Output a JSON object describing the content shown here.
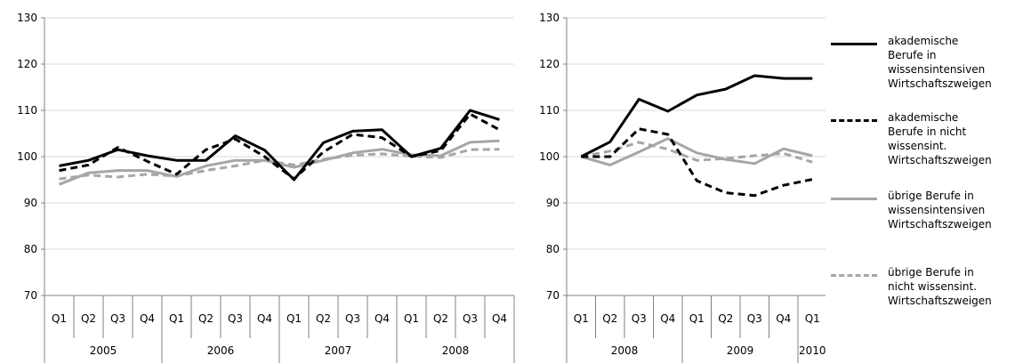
{
  "chart_data": [
    {
      "type": "line",
      "categories": [
        "Q1",
        "Q2",
        "Q3",
        "Q4",
        "Q1",
        "Q2",
        "Q3",
        "Q4",
        "Q1",
        "Q2",
        "Q3",
        "Q4",
        "Q1",
        "Q2",
        "Q3",
        "Q4"
      ],
      "groups": [
        {
          "label": "2005",
          "span": 4
        },
        {
          "label": "2006",
          "span": 4
        },
        {
          "label": "2007",
          "span": 4
        },
        {
          "label": "2008",
          "span": 4
        }
      ],
      "ylim": [
        70,
        130
      ],
      "yticks": [
        "70",
        "80",
        "90",
        "100",
        "110",
        "120",
        "130"
      ],
      "grid": true,
      "series": [
        {
          "name": "akademische Berufe in wissensintensiven Wirtschaftszweigen",
          "values": [
            98,
            99.2,
            101.5,
            100.2,
            99.2,
            99.2,
            104.5,
            101.4,
            95,
            103,
            105.5,
            105.8,
            100,
            101.8,
            110,
            108
          ]
        },
        {
          "name": "akademische Berufe in nicht wissensint. Wirtschaftszweigen",
          "values": [
            97,
            98.2,
            102,
            99,
            96.2,
            101.5,
            103.8,
            100,
            95.2,
            101,
            104.8,
            104.1,
            100,
            101.3,
            109.2,
            105.8
          ]
        },
        {
          "name": "übrige Berufe in wissensintensiven Wirtschaftszweigen",
          "values": [
            94,
            96.5,
            97,
            97,
            95.7,
            98,
            99.2,
            99.2,
            97.7,
            99.2,
            100.8,
            101.6,
            100.4,
            100.2,
            103.1,
            103.4
          ]
        },
        {
          "name": "übrige Berufe in nicht wissensint. Wirtschaftszweigen",
          "values": [
            95.2,
            96,
            95.6,
            96.2,
            95.8,
            97,
            98,
            99.2,
            98.2,
            99.4,
            100.3,
            100.6,
            100.1,
            99.8,
            101.5,
            101.6
          ]
        }
      ]
    },
    {
      "type": "line",
      "categories": [
        "Q1",
        "Q2",
        "Q3",
        "Q4",
        "Q1",
        "Q2",
        "Q3",
        "Q4",
        "Q1"
      ],
      "groups": [
        {
          "label": "2008",
          "span": 4
        },
        {
          "label": "2009",
          "span": 4
        },
        {
          "label": "2010",
          "span": 1
        }
      ],
      "ylim": [
        70,
        130
      ],
      "yticks": [
        "70",
        "80",
        "90",
        "100",
        "110",
        "120",
        "130"
      ],
      "grid": true,
      "series": [
        {
          "name": "akademische Berufe in wissensintensiven Wirtschaftszweigen",
          "values": [
            100,
            103.2,
            112.4,
            109.8,
            113.3,
            114.6,
            117.5,
            116.9,
            116.9
          ]
        },
        {
          "name": "akademische Berufe in nicht wissensint. Wirtschaftszweigen",
          "values": [
            100,
            100,
            106,
            104.8,
            94.8,
            92.2,
            91.6,
            93.8,
            95.1
          ]
        },
        {
          "name": "übrige Berufe in wissensintensiven Wirtschaftszweigen",
          "values": [
            100,
            98.2,
            101,
            103.9,
            100.8,
            99.4,
            98.5,
            101.7,
            100.2
          ]
        },
        {
          "name": "übrige Berufe in nicht wissensint. Wirtschaftszweigen",
          "values": [
            100,
            101.2,
            103.1,
            101.6,
            99.2,
            99.6,
            100.2,
            100.7,
            98.8
          ]
        }
      ]
    }
  ],
  "legend": [
    {
      "lines": [
        "akademische",
        "Berufe in",
        "wissensintensiven",
        "Wirtschaftszweigen"
      ],
      "color": "#000000",
      "dash": false
    },
    {
      "lines": [
        "akademische",
        "Berufe in nicht",
        "wissensint.",
        "Wirtschaftszweigen"
      ],
      "color": "#000000",
      "dash": true
    },
    {
      "lines": [
        "übrige Berufe in",
        "wissensintensiven",
        "Wirtschaftszweigen"
      ],
      "color": "#a6a6a6",
      "dash": false
    },
    {
      "lines": [
        "übrige Berufe in",
        "nicht wissensint.",
        "Wirtschaftszweigen"
      ],
      "color": "#a6a6a6",
      "dash": true
    }
  ],
  "series_styles": [
    {
      "color": "#000000",
      "dash": false
    },
    {
      "color": "#000000",
      "dash": true
    },
    {
      "color": "#a6a6a6",
      "dash": false
    },
    {
      "color": "#a6a6a6",
      "dash": true
    }
  ]
}
